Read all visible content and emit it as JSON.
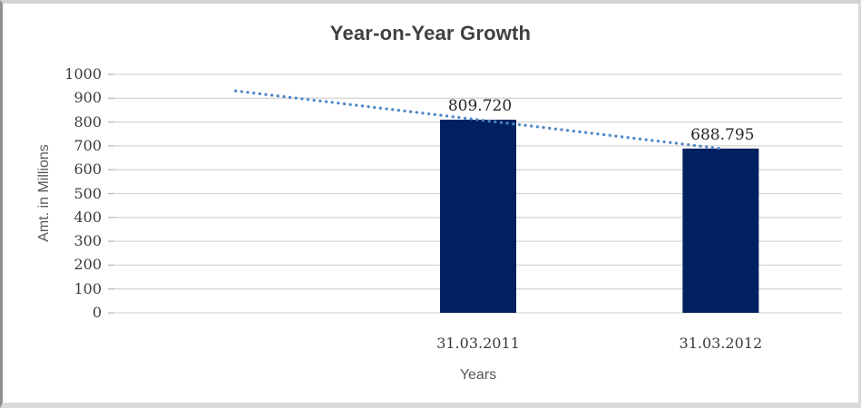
{
  "chart_data": {
    "type": "bar",
    "title": "Year-on-Year Growth",
    "xlabel": "Years",
    "ylabel": "Amt. in Millions",
    "categories": [
      "31.03.2011",
      "31.03.2012"
    ],
    "values": [
      809.72,
      688.795
    ],
    "data_labels": [
      "809.720",
      "688.795"
    ],
    "ylim": [
      0,
      1000
    ],
    "yticks": [
      0,
      100,
      200,
      300,
      400,
      500,
      600,
      700,
      800,
      900,
      1000
    ],
    "grid": true,
    "legend": "none",
    "colors": {
      "bar": "#002060",
      "trendline": "#4e87c8",
      "gridline": "#d6d6d6",
      "title_text": "#404040",
      "tick_text": "#3b3b3b",
      "axis_title_text": "#595959",
      "frame_border": "#8f8f8f"
    },
    "trendline": {
      "type": "linear",
      "style": "dotted",
      "color": "#4e87c8",
      "start_value": 930.645,
      "end_value": 688.795
    },
    "layout_hint": {
      "n_category_slots": 3,
      "bar_slot_indices": [
        2,
        3
      ],
      "trend_from_slot": 1,
      "trend_to_slot": 3,
      "legend_position": "none"
    }
  }
}
